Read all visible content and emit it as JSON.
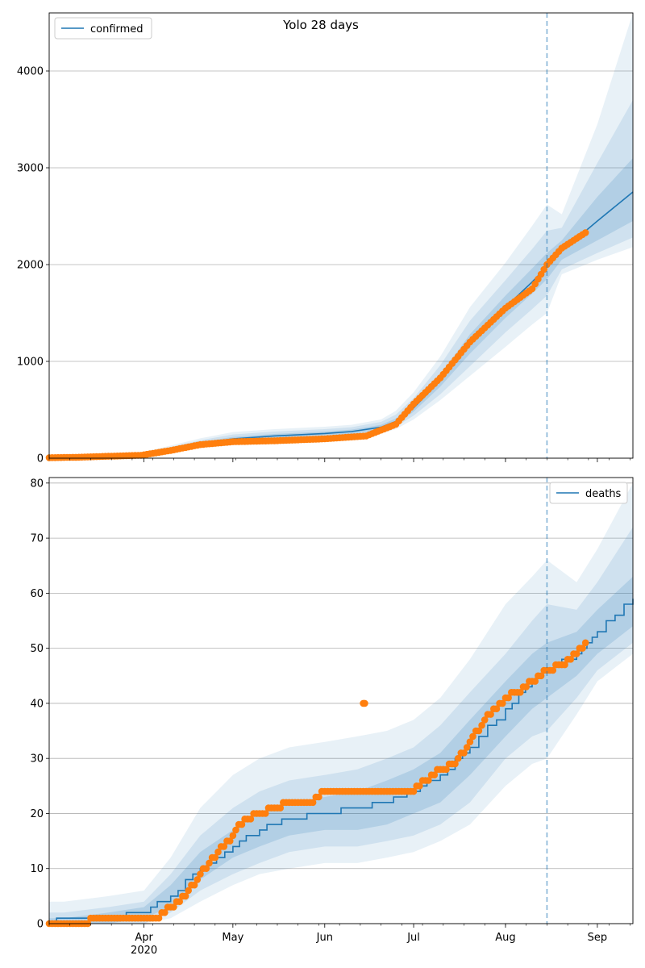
{
  "figure": {
    "title": "Yolo 28 days"
  },
  "colors": {
    "line": "#1f77b4",
    "band": "#1f77b4",
    "points": "#ff7f0e",
    "grid": "#b0b0b0",
    "cutoff": "#1f77b4"
  },
  "chart_data": [
    {
      "type": "line",
      "title": "Yolo 28 days",
      "legend": {
        "label": "confirmed",
        "placement": "top-left"
      },
      "x_range": [
        "2020-02-29",
        "2020-09-13"
      ],
      "ylim": [
        0,
        4600
      ],
      "yticks": [
        0,
        1000,
        2000,
        3000,
        4000
      ],
      "xticks": [
        {
          "date": "2020-04-01",
          "label": "Apr",
          "sublabel": "2020"
        },
        {
          "date": "2020-05-01",
          "label": "May"
        },
        {
          "date": "2020-06-01",
          "label": "Jun"
        },
        {
          "date": "2020-07-01",
          "label": "Jul"
        },
        {
          "date": "2020-08-01",
          "label": "Aug"
        },
        {
          "date": "2020-09-01",
          "label": "Sep"
        }
      ],
      "grid": "horizontal",
      "cutoff_date": "2020-08-15",
      "observed_end": "2020-08-28",
      "model": {
        "dates": [
          "2020-02-29",
          "2020-03-15",
          "2020-03-25",
          "2020-04-01",
          "2020-04-10",
          "2020-04-20",
          "2020-05-01",
          "2020-05-15",
          "2020-06-01",
          "2020-06-10",
          "2020-06-20",
          "2020-06-25",
          "2020-07-01",
          "2020-07-10",
          "2020-07-20",
          "2020-08-01",
          "2020-08-10",
          "2020-08-15",
          "2020-08-20",
          "2020-09-01",
          "2020-09-13"
        ],
        "median": [
          5,
          10,
          20,
          40,
          90,
          150,
          200,
          230,
          255,
          275,
          320,
          380,
          520,
          800,
          1180,
          1560,
          1820,
          1980,
          2140,
          2450,
          2750
        ],
        "inner_low": [
          5,
          10,
          18,
          35,
          80,
          135,
          180,
          210,
          235,
          250,
          295,
          350,
          480,
          740,
          1080,
          1450,
          1700,
          1850,
          2050,
          2250,
          2450
        ],
        "inner_high": [
          5,
          12,
          22,
          45,
          100,
          165,
          220,
          250,
          275,
          295,
          345,
          410,
          560,
          860,
          1280,
          1680,
          1960,
          2120,
          2250,
          2700,
          3100
        ],
        "mid_low": [
          5,
          8,
          15,
          30,
          70,
          120,
          165,
          195,
          220,
          235,
          275,
          325,
          440,
          660,
          950,
          1300,
          1540,
          1680,
          1950,
          2120,
          2280
        ],
        "mid_high": [
          5,
          14,
          26,
          55,
          115,
          185,
          245,
          275,
          300,
          320,
          375,
          450,
          620,
          960,
          1420,
          1840,
          2160,
          2350,
          2380,
          3050,
          3700
        ],
        "outer_low": [
          5,
          6,
          12,
          25,
          60,
          105,
          150,
          180,
          205,
          220,
          255,
          300,
          400,
          600,
          850,
          1150,
          1380,
          1500,
          1900,
          2050,
          2180
        ],
        "outer_high": [
          5,
          16,
          30,
          65,
          130,
          205,
          270,
          300,
          325,
          345,
          400,
          490,
          680,
          1050,
          1560,
          2020,
          2400,
          2620,
          2520,
          3450,
          4600
        ]
      },
      "observed": {
        "dates": [
          "2020-02-29",
          "2020-03-10",
          "2020-03-20",
          "2020-03-31",
          "2020-04-10",
          "2020-04-20",
          "2020-05-01",
          "2020-05-15",
          "2020-06-01",
          "2020-06-15",
          "2020-06-25",
          "2020-07-01",
          "2020-07-10",
          "2020-07-20",
          "2020-08-01",
          "2020-08-10",
          "2020-08-15",
          "2020-08-20",
          "2020-08-28"
        ],
        "values": [
          5,
          10,
          20,
          30,
          80,
          140,
          170,
          180,
          200,
          230,
          350,
          560,
          830,
          1200,
          1550,
          1750,
          2000,
          2170,
          2330
        ],
        "outliers": []
      }
    },
    {
      "type": "line",
      "title": "",
      "legend": {
        "label": "deaths",
        "placement": "top-right"
      },
      "x_range": [
        "2020-02-29",
        "2020-09-13"
      ],
      "ylim": [
        0,
        81
      ],
      "yticks": [
        0,
        10,
        20,
        30,
        40,
        50,
        60,
        70,
        80
      ],
      "xticks": [
        {
          "date": "2020-04-01",
          "label": "Apr",
          "sublabel": "2020"
        },
        {
          "date": "2020-05-01",
          "label": "May"
        },
        {
          "date": "2020-06-01",
          "label": "Jun"
        },
        {
          "date": "2020-07-01",
          "label": "Jul"
        },
        {
          "date": "2020-08-01",
          "label": "Aug"
        },
        {
          "date": "2020-09-01",
          "label": "Sep"
        }
      ],
      "grid": "horizontal",
      "cutoff_date": "2020-08-15",
      "observed_end": "2020-08-28",
      "model": {
        "dates": [
          "2020-02-29",
          "2020-03-05",
          "2020-03-20",
          "2020-04-01",
          "2020-04-10",
          "2020-04-20",
          "2020-05-01",
          "2020-05-10",
          "2020-05-20",
          "2020-06-01",
          "2020-06-12",
          "2020-06-22",
          "2020-07-01",
          "2020-07-10",
          "2020-07-20",
          "2020-08-01",
          "2020-08-10",
          "2020-08-15",
          "2020-08-25",
          "2020-09-01",
          "2020-09-13"
        ],
        "median": [
          0,
          1,
          1,
          2,
          5,
          10,
          14,
          17,
          19,
          20,
          21,
          22,
          24,
          27,
          32,
          39,
          44,
          46,
          49,
          53,
          59
        ],
        "inner_low": [
          0,
          0,
          0,
          1,
          3,
          8,
          12,
          14,
          16,
          17,
          17,
          18,
          20,
          22,
          27,
          34,
          39,
          41,
          45,
          49,
          54
        ],
        "inner_high": [
          1,
          1,
          2,
          3,
          7,
          13,
          17,
          20,
          22,
          23,
          24,
          26,
          28,
          31,
          37,
          44,
          49,
          51,
          53,
          57,
          63
        ],
        "mid_low": [
          0,
          0,
          0,
          0,
          2,
          6,
          9,
          11,
          13,
          14,
          14,
          15,
          16,
          18,
          22,
          30,
          34,
          35,
          41,
          46,
          51
        ],
        "mid_high": [
          2,
          2,
          3,
          4,
          9,
          16,
          21,
          24,
          26,
          27,
          28,
          30,
          32,
          36,
          42,
          49,
          55,
          58,
          57,
          62,
          72
        ],
        "outer_low": [
          0,
          0,
          0,
          0,
          1,
          4,
          7,
          9,
          10,
          11,
          11,
          12,
          13,
          15,
          18,
          25,
          29,
          30,
          38,
          44,
          49
        ],
        "outer_high": [
          4,
          4,
          5,
          6,
          12,
          21,
          27,
          30,
          32,
          33,
          34,
          35,
          37,
          41,
          48,
          58,
          63,
          66,
          62,
          68,
          80
        ]
      },
      "observed": {
        "dates": [
          "2020-02-29",
          "2020-03-10",
          "2020-03-17",
          "2020-03-25",
          "2020-04-05",
          "2020-04-10",
          "2020-04-15",
          "2020-04-20",
          "2020-04-26",
          "2020-05-01",
          "2020-05-05",
          "2020-05-10",
          "2020-05-20",
          "2020-05-28",
          "2020-06-01",
          "2020-06-10",
          "2020-06-15",
          "2020-06-25",
          "2020-07-01",
          "2020-07-05",
          "2020-07-10",
          "2020-07-15",
          "2020-07-20",
          "2020-07-25",
          "2020-08-01",
          "2020-08-05",
          "2020-08-10",
          "2020-08-15",
          "2020-08-20",
          "2020-08-25",
          "2020-08-28"
        ],
        "values": [
          0,
          0,
          1,
          1,
          1,
          3,
          5,
          9,
          13,
          16,
          19,
          20,
          22,
          22,
          24,
          24,
          24,
          24,
          24,
          26,
          28,
          29,
          33,
          37,
          41,
          42,
          44,
          46,
          47,
          49,
          51
        ],
        "outliers": [
          {
            "date": "2020-06-14",
            "value": 40
          }
        ]
      }
    }
  ]
}
